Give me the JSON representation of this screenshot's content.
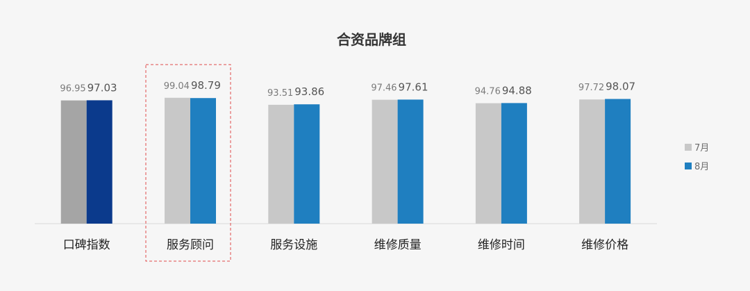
{
  "chart_data": {
    "type": "bar",
    "title": "合资品牌组",
    "categories": [
      "口碑指数",
      "服务顾问",
      "服务设施",
      "维修质量",
      "维修时间",
      "维修价格"
    ],
    "series": [
      {
        "name": "7月",
        "values": [
          96.95,
          99.04,
          93.51,
          97.46,
          94.76,
          97.72
        ],
        "color": "#c8c8c8"
      },
      {
        "name": "8月",
        "values": [
          97.03,
          98.79,
          93.86,
          97.61,
          94.88,
          98.07
        ],
        "color": "#1f7fc0"
      }
    ],
    "value_labels": {
      "7月": [
        "96.95",
        "99.04",
        "93.51",
        "97.46",
        "94.76",
        "97.72"
      ],
      "8月": [
        "97.03",
        "98.79",
        "93.86",
        "97.61",
        "94.88",
        "98.07"
      ]
    },
    "highlight": {
      "category": "口碑指数",
      "colors": {
        "7月": "#a5a5a5",
        "8月": "#0b3a8c"
      }
    },
    "boxed_category": "服务顾问",
    "legend_position": "right",
    "grid": false,
    "ylim": [
      0,
      100
    ]
  }
}
